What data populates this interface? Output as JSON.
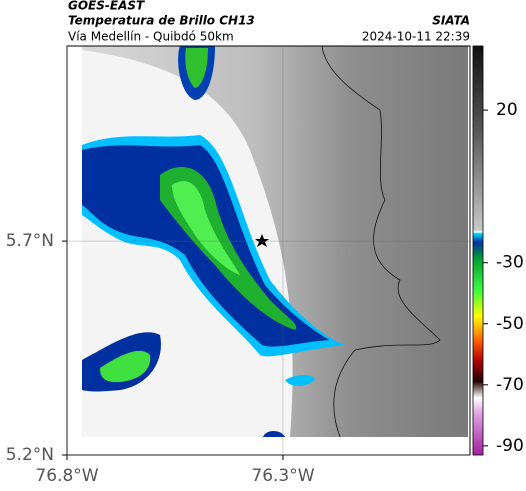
{
  "header": {
    "satellite": "GOES-EAST",
    "product": "Temperatura de Brillo CH13",
    "source": "SIATA",
    "region": "Vía Medellín - Quibdó 50km",
    "timestamp": "2024-10-11 22:39"
  },
  "map": {
    "xlim": [
      -76.8,
      -75.867
    ],
    "ylim": [
      5.2,
      6.156
    ],
    "xticks": [
      {
        "value": -76.8,
        "label": "76.8°W"
      },
      {
        "value": -76.3,
        "label": "76.3°W"
      }
    ],
    "yticks": [
      {
        "value": 5.7,
        "label": "5.7°N"
      },
      {
        "value": 5.2,
        "label": "5.2°N"
      }
    ]
  },
  "colorbar": {
    "lim": [
      -93,
      41
    ],
    "ticks": [
      20,
      -30,
      -50,
      -70,
      -90
    ]
  }
}
